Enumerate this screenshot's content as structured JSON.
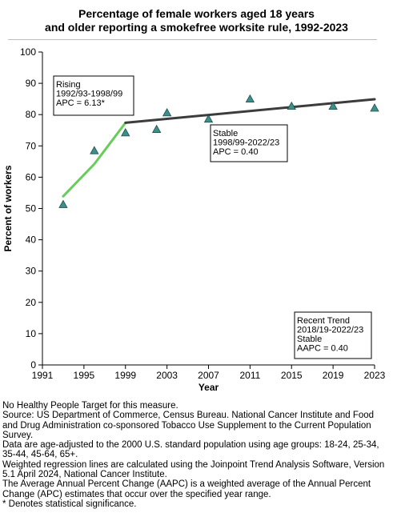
{
  "title_line1": "Percentage of female workers aged 18 years",
  "title_line2": "and older reporting a smokefree worksite rule, 1992-2023",
  "chart_data": {
    "type": "scatter",
    "xlabel": "Year",
    "ylabel": "Percent of workers",
    "xlim": [
      1991,
      2023
    ],
    "ylim": [
      0,
      100
    ],
    "xticks": [
      1991,
      1995,
      1999,
      2003,
      2007,
      2011,
      2015,
      2019,
      2023
    ],
    "yticks": [
      0,
      10,
      20,
      30,
      40,
      50,
      60,
      70,
      80,
      90,
      100
    ],
    "grid": false,
    "marker_color": "#3d8f8a",
    "points": [
      {
        "x": 1993,
        "y": 51.3
      },
      {
        "x": 1996,
        "y": 68.5
      },
      {
        "x": 1999,
        "y": 74.2
      },
      {
        "x": 2002,
        "y": 75.3
      },
      {
        "x": 2003,
        "y": 80.6
      },
      {
        "x": 2007,
        "y": 78.6
      },
      {
        "x": 2011,
        "y": 85.0
      },
      {
        "x": 2015,
        "y": 82.7
      },
      {
        "x": 2019,
        "y": 82.7
      },
      {
        "x": 2023,
        "y": 82.1
      }
    ],
    "trend_segments": [
      {
        "x": [
          1993,
          1996,
          1999
        ],
        "y": [
          53.9,
          64.2,
          77.4
        ],
        "color": "#66cc5a"
      },
      {
        "x": [
          1999,
          2023
        ],
        "y": [
          77.4,
          84.9
        ],
        "color": "#3c3c3c"
      }
    ],
    "annotations": [
      {
        "lines": [
          "Rising",
          "1992/93-1998/99",
          "APC =  6.13*"
        ]
      },
      {
        "lines": [
          "Stable",
          "1998/99-2022/23",
          "APC =  0.40"
        ]
      },
      {
        "lines": [
          "Recent Trend",
          "2018/19-2022/23",
          "Stable",
          "AAPC =  0.40"
        ]
      }
    ]
  },
  "notes": [
    "No Healthy People Target for this measure.",
    "Source: US Department of Commerce, Census Bureau. National Cancer Institute and Food and Drug Administration co-sponsored Tobacco Use Supplement to the Current Population Survey.",
    "Data are age-adjusted to the 2000 U.S. standard population using age groups: 18-24, 25-34, 35-44, 45-64, 65+.",
    "Weighted regression lines are calculated using the Joinpoint Trend Analysis Software, Version 5.1 April 2024, National Cancer Institute.",
    "The Average Annual Percent Change (AAPC) is a weighted average of the Annual Percent Change (APC) estimates that occur over the specified year range.",
    "* Denotes statistical significance."
  ]
}
